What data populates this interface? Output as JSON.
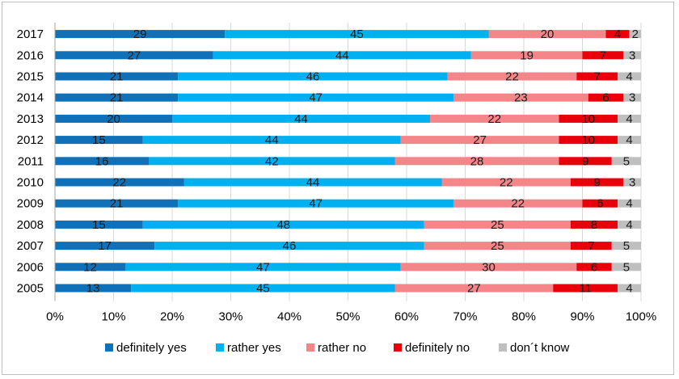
{
  "chart_data": {
    "type": "stacked-bar-horizontal-percent",
    "title": "",
    "xlabel": "",
    "ylabel": "",
    "xlim": [
      0,
      100
    ],
    "x_tick_labels": [
      "0%",
      "10%",
      "20%",
      "30%",
      "40%",
      "50%",
      "60%",
      "70%",
      "80%",
      "90%",
      "100%"
    ],
    "grid": true,
    "legend_position": "bottom",
    "categories": [
      "2017",
      "2016",
      "2015",
      "2014",
      "2013",
      "2012",
      "2011",
      "2010",
      "2009",
      "2008",
      "2007",
      "2006",
      "2005"
    ],
    "series": [
      {
        "name": "definitely yes",
        "color": "#1070b8",
        "values": [
          29,
          27,
          21,
          21,
          20,
          15,
          16,
          22,
          21,
          15,
          17,
          12,
          13
        ]
      },
      {
        "name": "rather yes",
        "color": "#00b0f0",
        "values": [
          45,
          44,
          46,
          47,
          44,
          44,
          42,
          44,
          47,
          48,
          46,
          47,
          45
        ]
      },
      {
        "name": "rather no",
        "color": "#f4868a",
        "values": [
          20,
          19,
          22,
          23,
          22,
          27,
          28,
          22,
          22,
          25,
          25,
          30,
          27
        ]
      },
      {
        "name": "definitely no",
        "color": "#e8000b",
        "values": [
          4,
          7,
          7,
          6,
          10,
          10,
          9,
          9,
          6,
          8,
          7,
          6,
          11
        ]
      },
      {
        "name": "don´t know",
        "color": "#bfbfbf",
        "values": [
          2,
          3,
          4,
          3,
          4,
          4,
          5,
          3,
          4,
          4,
          5,
          5,
          4
        ]
      }
    ]
  }
}
